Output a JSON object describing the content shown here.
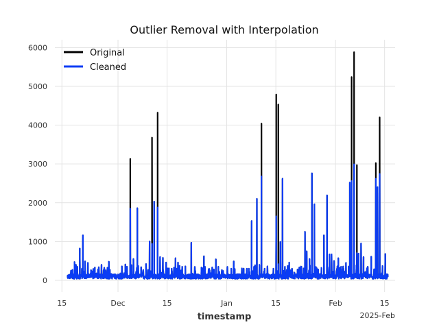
{
  "chart_data": {
    "type": "line",
    "title": "Outlier Removal with Interpolation",
    "xlabel": "timestamp",
    "ylabel": "",
    "x_offset_label": "2025-Feb",
    "x_ticks": [
      {
        "day": 0,
        "label": "15"
      },
      {
        "day": 16,
        "label": "Dec"
      },
      {
        "day": 30,
        "label": "15"
      },
      {
        "day": 47,
        "label": "Jan"
      },
      {
        "day": 61,
        "label": "15"
      },
      {
        "day": 78,
        "label": "Feb"
      },
      {
        "day": 92,
        "label": "15"
      }
    ],
    "y_ticks": [
      0,
      1000,
      2000,
      3000,
      4000,
      5000,
      6000
    ],
    "xlim": [
      -2,
      95
    ],
    "ylim": [
      -300,
      6200
    ],
    "grid": true,
    "legend": {
      "position": "top-left"
    },
    "colors": {
      "Original": "#000000",
      "Cleaned": "#0a3cf5"
    },
    "spikes_original": [
      [
        19.5,
        3130
      ],
      [
        21.5,
        1850
      ],
      [
        25.7,
        3680
      ],
      [
        27.3,
        4320
      ],
      [
        56.9,
        4040
      ],
      [
        61.1,
        4790
      ],
      [
        61.7,
        4530
      ],
      [
        62.3,
        980
      ],
      [
        75.6,
        2180
      ],
      [
        82.6,
        5240
      ],
      [
        83.3,
        5880
      ],
      [
        84.1,
        2970
      ],
      [
        89.5,
        3020
      ],
      [
        90.6,
        4200
      ],
      [
        92.2,
        670
      ]
    ],
    "series": [
      {
        "name": "Original",
        "x_start_day": 1.5,
        "x_end_day": 93.0
      },
      {
        "name": "Cleaned",
        "x_start_day": 1.5,
        "x_end_day": 93.0,
        "spikes": [
          [
            2.6,
            250
          ],
          [
            3.6,
            470
          ],
          [
            4.0,
            400
          ],
          [
            4.4,
            350
          ],
          [
            5.1,
            820
          ],
          [
            5.7,
            300
          ],
          [
            6.0,
            1160
          ],
          [
            6.6,
            490
          ],
          [
            7.4,
            450
          ],
          [
            8.6,
            230
          ],
          [
            9.4,
            330
          ],
          [
            10.3,
            280
          ],
          [
            11.3,
            400
          ],
          [
            12.4,
            220
          ],
          [
            13.4,
            480
          ],
          [
            14.6,
            150
          ],
          [
            15.3,
            120
          ],
          [
            17.1,
            360
          ],
          [
            18.1,
            410
          ],
          [
            19.5,
            1850
          ],
          [
            20.4,
            550
          ],
          [
            21.5,
            1860
          ],
          [
            22.6,
            340
          ],
          [
            24.0,
            420
          ],
          [
            25.0,
            1000
          ],
          [
            25.7,
            940
          ],
          [
            26.3,
            2030
          ],
          [
            27.3,
            1880
          ],
          [
            28.0,
            600
          ],
          [
            28.8,
            580
          ],
          [
            29.7,
            460
          ],
          [
            30.5,
            310
          ],
          [
            31.3,
            300
          ],
          [
            32.4,
            570
          ],
          [
            33.1,
            460
          ],
          [
            34.3,
            350
          ],
          [
            35.2,
            360
          ],
          [
            36.9,
            970
          ],
          [
            38.8,
            80
          ],
          [
            40.5,
            620
          ],
          [
            42.6,
            180
          ],
          [
            43.9,
            540
          ],
          [
            44.6,
            350
          ],
          [
            46.0,
            240
          ],
          [
            47.5,
            130
          ],
          [
            48.3,
            300
          ],
          [
            49.0,
            490
          ],
          [
            50.6,
            90
          ],
          [
            52.7,
            250
          ],
          [
            53.3,
            300
          ],
          [
            54.1,
            1530
          ],
          [
            54.8,
            350
          ],
          [
            55.6,
            2100
          ],
          [
            56.3,
            400
          ],
          [
            56.9,
            2680
          ],
          [
            57.8,
            300
          ],
          [
            58.6,
            360
          ],
          [
            60.3,
            300
          ],
          [
            61.1,
            1650
          ],
          [
            61.7,
            420
          ],
          [
            62.3,
            990
          ],
          [
            62.9,
            2620
          ],
          [
            63.6,
            350
          ],
          [
            64.8,
            460
          ],
          [
            65.6,
            300
          ],
          [
            66.3,
            200
          ],
          [
            67.2,
            280
          ],
          [
            68.3,
            350
          ],
          [
            69.3,
            1250
          ],
          [
            69.8,
            750
          ],
          [
            70.6,
            550
          ],
          [
            71.3,
            2760
          ],
          [
            72.0,
            1960
          ],
          [
            72.9,
            120
          ],
          [
            74.0,
            320
          ],
          [
            74.7,
            1160
          ],
          [
            75.6,
            2190
          ],
          [
            76.3,
            670
          ],
          [
            76.9,
            670
          ],
          [
            77.6,
            500
          ],
          [
            78.8,
            570
          ],
          [
            79.6,
            350
          ],
          [
            80.3,
            300
          ],
          [
            81.0,
            450
          ],
          [
            82.1,
            2520
          ],
          [
            82.6,
            2560
          ],
          [
            83.3,
            2990
          ],
          [
            84.1,
            700
          ],
          [
            84.6,
            690
          ],
          [
            85.3,
            950
          ],
          [
            86.0,
            600
          ],
          [
            87.2,
            350
          ],
          [
            88.2,
            610
          ],
          [
            89.5,
            2620
          ],
          [
            90.0,
            2400
          ],
          [
            90.6,
            2740
          ],
          [
            91.4,
            370
          ],
          [
            92.2,
            680
          ]
        ]
      }
    ]
  }
}
